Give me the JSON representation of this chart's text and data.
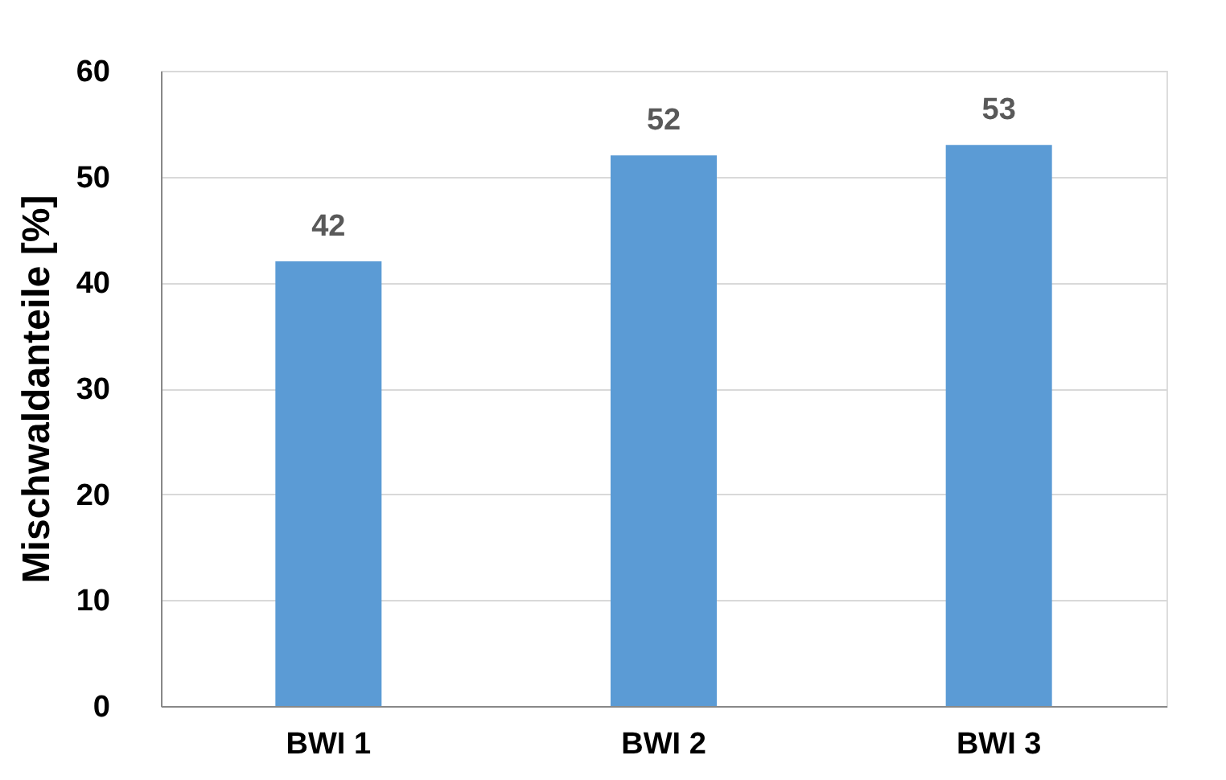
{
  "chart_data": {
    "type": "bar",
    "ylabel": "Mischwaldanteile [%]",
    "categories": [
      "BWI 1",
      "BWI 2",
      "BWI 3"
    ],
    "values": [
      42,
      52,
      53
    ],
    "color": "#5b9bd5",
    "ylim": [
      0,
      60
    ],
    "yticks": [
      0,
      10,
      20,
      30,
      40,
      50,
      60
    ],
    "grid": "y",
    "data_labels": true
  }
}
